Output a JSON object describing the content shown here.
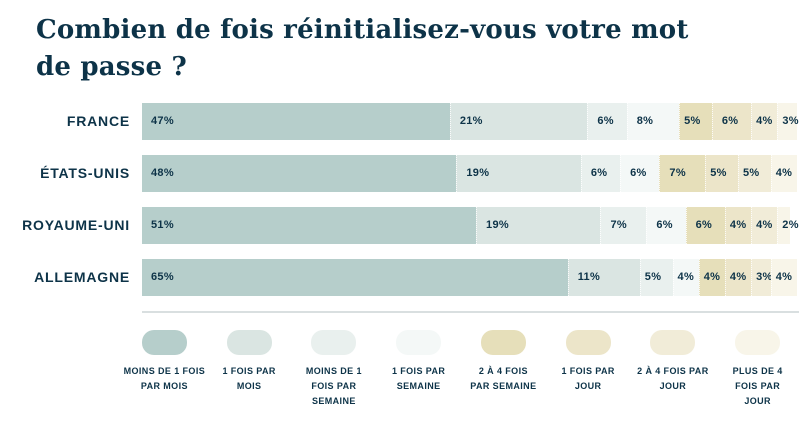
{
  "title": "Combien de fois réinitialisez-vous votre mot de passe ?",
  "colors": {
    "text_navy": "#0d3348",
    "divider": "#d9dfe0",
    "background": "#ffffff"
  },
  "chart_data": {
    "type": "bar",
    "stacked": true,
    "orientation": "horizontal",
    "unit": "%",
    "value_labels": "inside-left",
    "legend_position": "bottom",
    "grid": false,
    "categories": [
      "FRANCE",
      "ÉTATS-UNIS",
      "ROYAUME-UNI",
      "ALLEMAGNE"
    ],
    "series": [
      {
        "name": "MOINS DE 1 FOIS PAR MOIS",
        "color": "#b6cecb",
        "values": [
          47,
          48,
          51,
          65
        ]
      },
      {
        "name": "1 FOIS PAR MOIS",
        "color": "#dae5e2",
        "values": [
          21,
          19,
          19,
          11
        ]
      },
      {
        "name": "MOINS DE 1 FOIS PAR SEMAINE",
        "color": "#e9f0ee",
        "values": [
          6,
          6,
          7,
          5
        ]
      },
      {
        "name": "1 FOIS PAR SEMAINE",
        "color": "#f4f8f7",
        "values": [
          8,
          6,
          6,
          4
        ]
      },
      {
        "name": "2 À 4 FOIS PAR SEMAINE",
        "color": "#e6dfba",
        "values": [
          5,
          7,
          6,
          4
        ]
      },
      {
        "name": "1 FOIS PAR JOUR",
        "color": "#ece5c9",
        "values": [
          6,
          5,
          4,
          4
        ]
      },
      {
        "name": "2 À 4 FOIS PAR JOUR",
        "color": "#f1ecd8",
        "values": [
          4,
          5,
          4,
          3
        ]
      },
      {
        "name": "PLUS DE 4 FOIS PAR JOUR",
        "color": "#f8f5e9",
        "values": [
          3,
          4,
          2,
          4
        ]
      }
    ],
    "legend_labels": [
      "MOINS DE 1 FOIS\nPAR MOIS",
      "1 FOIS PAR\nMOIS",
      "MOINS DE 1\nFOIS PAR\nSEMAINE",
      "1 FOIS PAR\nSEMAINE",
      "2 À 4 FOIS\nPAR SEMAINE",
      "1 FOIS PAR\nJOUR",
      "2 À 4 FOIS PAR\nJOUR",
      "PLUS DE 4\nFOIS PAR\nJOUR"
    ]
  }
}
